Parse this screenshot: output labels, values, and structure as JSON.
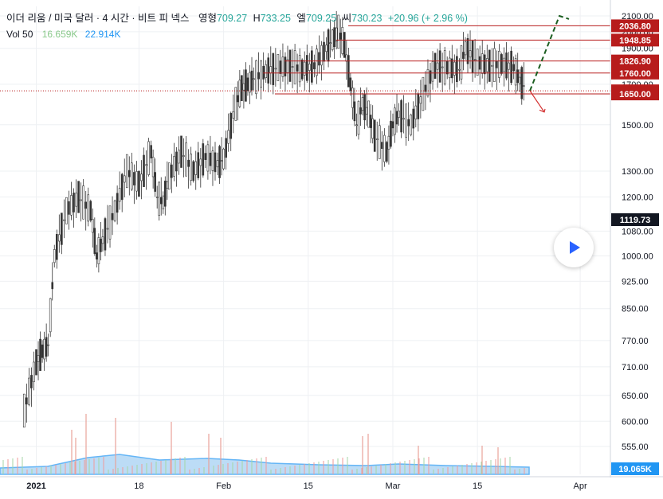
{
  "header": {
    "symbol": "이더 리움 / 미국 달러 · 4 시간 · 비트 피 넥스",
    "open_label": "영형",
    "open": "709.27",
    "high_label": "H",
    "high": "733.25",
    "low_label": "엘",
    "low": "709.25",
    "close_label": "씨",
    "close": "730.23",
    "change": "+20.96 (+ 2.96 %)",
    "up_color": "#26a69a"
  },
  "volume": {
    "label": "Vol 50",
    "v1": "16.659K",
    "v1_color": "#89c98a",
    "v2": "22.914K",
    "v2_color": "#2196f3"
  },
  "chart_data": {
    "type": "candlestick",
    "scale": "log",
    "ylim": [
      520,
      2150
    ],
    "yticks": [
      "2100.00",
      "2000.00",
      "1900.00",
      "1700.00",
      "1500.00",
      "1300.00",
      "1200.00",
      "1080.00",
      "1000.00",
      "925.00",
      "850.00",
      "770.00",
      "710.00",
      "650.00",
      "600.00",
      "555.00"
    ],
    "xticks": [
      "2021",
      "18",
      "Feb",
      "15",
      "Mar",
      "15",
      "Apr"
    ],
    "series_line_points": [
      [
        "2020-12-30",
        620
      ],
      [
        "2021-01-01",
        720
      ],
      [
        "2021-01-02",
        745
      ],
      [
        "2021-01-03",
        760
      ],
      [
        "2021-01-04",
        1000
      ],
      [
        "2021-01-06",
        1150
      ],
      [
        "2021-01-08",
        1200
      ],
      [
        "2021-01-10",
        1150
      ],
      [
        "2021-01-11",
        1000
      ],
      [
        "2021-01-12",
        1050
      ],
      [
        "2021-01-14",
        1150
      ],
      [
        "2021-01-16",
        1300
      ],
      [
        "2021-01-18",
        1250
      ],
      [
        "2021-01-20",
        1380
      ],
      [
        "2021-01-21",
        1200
      ],
      [
        "2021-01-22",
        1180
      ],
      [
        "2021-01-23",
        1280
      ],
      [
        "2021-01-25",
        1380
      ],
      [
        "2021-01-27",
        1300
      ],
      [
        "2021-01-29",
        1360
      ],
      [
        "2021-01-31",
        1330
      ],
      [
        "2021-02-01",
        1350
      ],
      [
        "2021-02-03",
        1600
      ],
      [
        "2021-02-04",
        1680
      ],
      [
        "2021-02-05",
        1700
      ],
      [
        "2021-02-06",
        1730
      ],
      [
        "2021-02-08",
        1770
      ],
      [
        "2021-02-10",
        1790
      ],
      [
        "2021-02-12",
        1800
      ],
      [
        "2021-02-14",
        1780
      ],
      [
        "2021-02-16",
        1800
      ],
      [
        "2021-02-18",
        1900
      ],
      [
        "2021-02-19",
        1950
      ],
      [
        "2021-02-20",
        2000
      ],
      [
        "2021-02-21",
        1920
      ],
      [
        "2021-02-22",
        1700
      ],
      [
        "2021-02-23",
        1500
      ],
      [
        "2021-02-24",
        1600
      ],
      [
        "2021-02-25",
        1550
      ],
      [
        "2021-02-26",
        1450
      ],
      [
        "2021-02-28",
        1380
      ],
      [
        "2021-03-01",
        1500
      ],
      [
        "2021-03-02",
        1550
      ],
      [
        "2021-03-04",
        1500
      ],
      [
        "2021-03-06",
        1650
      ],
      [
        "2021-03-08",
        1800
      ],
      [
        "2021-03-10",
        1790
      ],
      [
        "2021-03-12",
        1780
      ],
      [
        "2021-03-13",
        1900
      ],
      [
        "2021-03-15",
        1820
      ],
      [
        "2021-03-17",
        1800
      ],
      [
        "2021-03-19",
        1810
      ],
      [
        "2021-03-21",
        1790
      ],
      [
        "2021-03-22",
        1720
      ],
      [
        "2021-03-23",
        1680
      ]
    ],
    "horizontal_levels": [
      {
        "value": 2036.8,
        "label": "2036.80"
      },
      {
        "value": 1948.85,
        "label": "1948.85"
      },
      {
        "value": 1826.9,
        "label": "1826.90"
      },
      {
        "value": 1760.0,
        "label": "1760.00"
      },
      {
        "value": 1666.0,
        "label": "1666.00"
      },
      {
        "value": 1650.0,
        "label": "1650.00"
      }
    ],
    "level_color": "#b71c1c",
    "current_price": {
      "value": 1119.73,
      "label": "1119.73"
    },
    "projection_up": {
      "color": "#1b5e20",
      "points": [
        [
          1666,
          0
        ],
        [
          2100,
          1
        ]
      ]
    },
    "projection_down": {
      "color": "#d32f2f",
      "points": [
        [
          1666,
          0
        ],
        [
          1550,
          1
        ]
      ]
    },
    "volume_axis_label": "19.065K"
  }
}
